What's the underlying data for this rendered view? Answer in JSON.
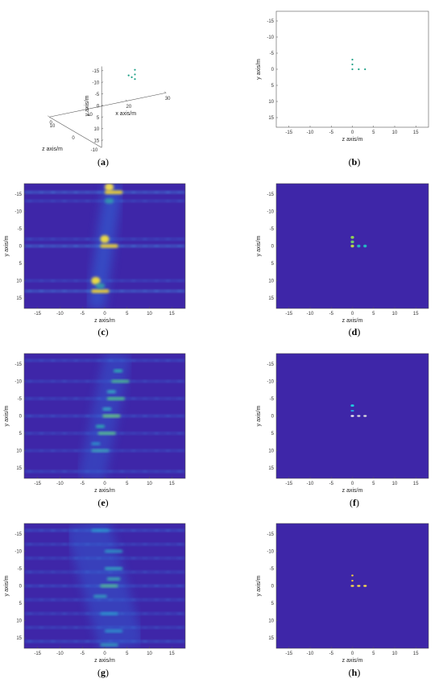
{
  "chart_data": [
    {
      "id": "a",
      "caption": "a",
      "type": "scatter3d",
      "xlabel": "x axis/m",
      "ylabel": "y axis/m",
      "zlabel": "z axis/m",
      "xticks": [
        0,
        10,
        20,
        30
      ],
      "yticks": [
        -15,
        -10,
        -5,
        0,
        5,
        10,
        15
      ],
      "zticks": [
        -10,
        0,
        10
      ],
      "points": [
        {
          "x": 15,
          "y": -4,
          "z": 0
        },
        {
          "x": 15,
          "y": -2,
          "z": 0
        },
        {
          "x": 15,
          "y": 0,
          "z": 0
        },
        {
          "x": 15,
          "y": 0,
          "z": 1.5
        },
        {
          "x": 15,
          "y": 0,
          "z": 3
        }
      ],
      "point_color": "#1fa187"
    },
    {
      "id": "b",
      "caption": "b",
      "type": "scatter",
      "xlabel": "z axis/m",
      "ylabel": "y axis/m",
      "xlim": [
        -18,
        18
      ],
      "ylim": [
        -18,
        18
      ],
      "y_reversed": true,
      "xticks": [
        -15,
        -10,
        -5,
        0,
        5,
        10,
        15
      ],
      "yticks": [
        -15,
        -10,
        -5,
        0,
        5,
        10,
        15
      ],
      "background": "#ffffff",
      "points": [
        {
          "x": 0,
          "y": -3,
          "c": "#1fa187"
        },
        {
          "x": 0,
          "y": -1.5,
          "c": "#1fa187"
        },
        {
          "x": 0,
          "y": 0,
          "c": "#1fa187"
        },
        {
          "x": 1.5,
          "y": 0,
          "c": "#1fa187"
        },
        {
          "x": 3,
          "y": 0,
          "c": "#1fa187"
        }
      ]
    },
    {
      "id": "c",
      "caption": "c",
      "type": "heatmap",
      "xlabel": "z axis/m",
      "ylabel": "y axis/m",
      "xlim": [
        -18,
        18
      ],
      "ylim": [
        -18,
        18
      ],
      "y_reversed": true,
      "xticks": [
        -15,
        -10,
        -5,
        0,
        5,
        10,
        15
      ],
      "yticks": [
        -15,
        -10,
        -5,
        0,
        5,
        10,
        15
      ],
      "background": "#3e26a8",
      "blobs": [
        {
          "x": 1,
          "y": -17,
          "w": 2,
          "h": 2.2,
          "c": "#ffe94a",
          "o": 0.9
        },
        {
          "x": 2,
          "y": -15.5,
          "w": 4,
          "h": 1,
          "c": "#fbd62b",
          "o": 0.95
        },
        {
          "x": 1,
          "y": -13,
          "w": 2,
          "h": 1.5,
          "c": "#33b7a0",
          "o": 0.6
        },
        {
          "x": 0,
          "y": -2,
          "w": 2,
          "h": 2.2,
          "c": "#f4e03c",
          "o": 0.95
        },
        {
          "x": 1,
          "y": 0,
          "w": 4,
          "h": 1,
          "c": "#fbd62b",
          "o": 0.95
        },
        {
          "x": -2,
          "y": 10,
          "w": 2,
          "h": 2.2,
          "c": "#f4e03c",
          "o": 0.95
        },
        {
          "x": -1,
          "y": 13,
          "w": 4,
          "h": 1,
          "c": "#fbd62b",
          "o": 0.95
        },
        {
          "x": -1,
          "y": 11.5,
          "w": 2,
          "h": 1.5,
          "c": "#35b6a2",
          "o": 0.7
        }
      ],
      "bands": [
        {
          "y": -15.5,
          "c": "#3f8ee0",
          "o": 0.55
        },
        {
          "y": -13,
          "c": "#3478de",
          "o": 0.35
        },
        {
          "y": 0,
          "c": "#3f8ee0",
          "o": 0.55
        },
        {
          "y": -2,
          "c": "#3478de",
          "o": 0.35
        },
        {
          "y": 13,
          "c": "#3f8ee0",
          "o": 0.55
        },
        {
          "y": 10,
          "c": "#3478de",
          "o": 0.35
        }
      ],
      "diagonal": {
        "x1": 2,
        "y1": -18,
        "x2": -2,
        "y2": 18,
        "w": 4,
        "c": "#2f6fe0",
        "o": 0.5
      }
    },
    {
      "id": "d",
      "caption": "d",
      "type": "heatmap",
      "xlabel": "z axis/m",
      "ylabel": "y axis/m",
      "xlim": [
        -18,
        18
      ],
      "ylim": [
        -18,
        18
      ],
      "y_reversed": true,
      "xticks": [
        -15,
        -10,
        -5,
        0,
        5,
        10,
        15
      ],
      "yticks": [
        -15,
        -10,
        -5,
        0,
        5,
        10,
        15
      ],
      "background": "#3e26a8",
      "blobs": [
        {
          "x": 0,
          "y": -2.5,
          "w": 0.8,
          "h": 0.8,
          "c": "#8fcf55",
          "o": 1
        },
        {
          "x": 0,
          "y": -1.2,
          "w": 0.8,
          "h": 0.8,
          "c": "#6fca6a",
          "o": 1
        },
        {
          "x": 0,
          "y": 0,
          "w": 0.8,
          "h": 0.8,
          "c": "#b8d64a",
          "o": 1
        },
        {
          "x": 1.5,
          "y": 0,
          "w": 0.8,
          "h": 0.8,
          "c": "#24b6c0",
          "o": 1
        },
        {
          "x": 3,
          "y": 0,
          "w": 0.8,
          "h": 0.8,
          "c": "#24b6c0",
          "o": 1
        }
      ],
      "bands": [],
      "diagonal": null
    },
    {
      "id": "e",
      "caption": "e",
      "type": "heatmap",
      "xlabel": "z axis/m",
      "ylabel": "y axis/m",
      "xlim": [
        -18,
        18
      ],
      "ylim": [
        -18,
        18
      ],
      "y_reversed": true,
      "xticks": [
        -15,
        -10,
        -5,
        0,
        5,
        10,
        15
      ],
      "yticks": [
        -15,
        -10,
        -5,
        0,
        5,
        10,
        15
      ],
      "background": "#3e26a8",
      "blobs": [
        {
          "x": 3,
          "y": -13,
          "w": 2,
          "h": 0.8,
          "c": "#2ac0b0",
          "o": 0.9
        },
        {
          "x": 3.5,
          "y": -10,
          "w": 4,
          "h": 0.8,
          "c": "#4fc88a",
          "o": 0.9
        },
        {
          "x": 1.5,
          "y": -7,
          "w": 2,
          "h": 0.8,
          "c": "#36b9c4",
          "o": 0.9
        },
        {
          "x": 2.5,
          "y": -5,
          "w": 4,
          "h": 0.8,
          "c": "#4fc88a",
          "o": 0.95
        },
        {
          "x": 0.5,
          "y": -2,
          "w": 2,
          "h": 0.8,
          "c": "#36b9c4",
          "o": 0.9
        },
        {
          "x": 1.5,
          "y": 0,
          "w": 4,
          "h": 0.8,
          "c": "#6fd27a",
          "o": 0.95
        },
        {
          "x": -1,
          "y": 3,
          "w": 2,
          "h": 0.8,
          "c": "#2ac0b0",
          "o": 0.9
        },
        {
          "x": 0.5,
          "y": 5,
          "w": 4,
          "h": 0.8,
          "c": "#5bc98c",
          "o": 0.95
        },
        {
          "x": -2,
          "y": 8,
          "w": 2,
          "h": 0.8,
          "c": "#2aa8d0",
          "o": 0.8
        },
        {
          "x": -1,
          "y": 10,
          "w": 4,
          "h": 0.8,
          "c": "#3fb6b8",
          "o": 0.85
        }
      ],
      "bands": [
        {
          "y": -16,
          "c": "#3478de",
          "o": 0.4
        },
        {
          "y": -10,
          "c": "#3478de",
          "o": 0.35
        },
        {
          "y": -5,
          "c": "#3478de",
          "o": 0.35
        },
        {
          "y": 0,
          "c": "#3478de",
          "o": 0.4
        },
        {
          "y": 5,
          "c": "#3478de",
          "o": 0.35
        },
        {
          "y": 10,
          "c": "#3478de",
          "o": 0.35
        },
        {
          "y": 16,
          "c": "#3478de",
          "o": 0.4
        }
      ],
      "diagonal": {
        "x1": 3,
        "y1": -18,
        "x2": -3,
        "y2": 18,
        "w": 6,
        "c": "#2f6fe0",
        "o": 0.35
      }
    },
    {
      "id": "f",
      "caption": "f",
      "type": "heatmap",
      "xlabel": "z axis/m",
      "ylabel": "y axis/m",
      "xlim": [
        -18,
        18
      ],
      "ylim": [
        -18,
        18
      ],
      "y_reversed": true,
      "xticks": [
        -15,
        -10,
        -5,
        0,
        5,
        10,
        15
      ],
      "yticks": [
        -15,
        -10,
        -5,
        0,
        5,
        10,
        15
      ],
      "background": "#3e26a8",
      "blobs": [
        {
          "x": 0,
          "y": -3,
          "w": 0.8,
          "h": 0.6,
          "c": "#1fd0e0",
          "o": 1
        },
        {
          "x": 0,
          "y": -1.5,
          "w": 0.8,
          "h": 0.5,
          "c": "#2b9be0",
          "o": 1
        },
        {
          "x": 0,
          "y": 0,
          "w": 0.8,
          "h": 0.5,
          "c": "#f2f2f2",
          "o": 1
        },
        {
          "x": 1.5,
          "y": 0,
          "w": 0.8,
          "h": 0.5,
          "c": "#dcdcdc",
          "o": 1
        },
        {
          "x": 3,
          "y": 0,
          "w": 0.8,
          "h": 0.5,
          "c": "#dcdcdc",
          "o": 1
        }
      ],
      "bands": [],
      "diagonal": null
    },
    {
      "id": "g",
      "caption": "g",
      "type": "heatmap",
      "xlabel": "z axis/m",
      "ylabel": "y axis/m",
      "xlim": [
        -18,
        18
      ],
      "ylim": [
        -18,
        18
      ],
      "y_reversed": true,
      "xticks": [
        -15,
        -10,
        -5,
        0,
        5,
        10,
        15
      ],
      "yticks": [
        -15,
        -10,
        -5,
        0,
        5,
        10,
        15
      ],
      "background": "#3e26a8",
      "blobs": [
        {
          "x": -1,
          "y": -16,
          "w": 4,
          "h": 0.8,
          "c": "#2aa8d0",
          "o": 0.8
        },
        {
          "x": 2,
          "y": -10,
          "w": 4,
          "h": 0.8,
          "c": "#2ab0c8",
          "o": 0.8
        },
        {
          "x": 2,
          "y": -5,
          "w": 4,
          "h": 0.8,
          "c": "#30b8c0",
          "o": 0.85
        },
        {
          "x": 2,
          "y": -2,
          "w": 3,
          "h": 0.8,
          "c": "#3ec0b0",
          "o": 0.85
        },
        {
          "x": 1,
          "y": 0,
          "w": 4,
          "h": 0.8,
          "c": "#58c890",
          "o": 0.9
        },
        {
          "x": -1,
          "y": 3,
          "w": 3,
          "h": 0.8,
          "c": "#30b8c0",
          "o": 0.8
        },
        {
          "x": 1,
          "y": 8,
          "w": 4,
          "h": 0.8,
          "c": "#2aa8d0",
          "o": 0.8
        },
        {
          "x": 2,
          "y": 13,
          "w": 4,
          "h": 0.8,
          "c": "#2aa8d0",
          "o": 0.8
        },
        {
          "x": 1,
          "y": 17,
          "w": 4,
          "h": 0.8,
          "c": "#30b8c0",
          "o": 0.8
        }
      ],
      "bands": [
        {
          "y": -16,
          "c": "#3478de",
          "o": 0.45
        },
        {
          "y": -12,
          "c": "#3478de",
          "o": 0.35
        },
        {
          "y": -8,
          "c": "#3478de",
          "o": 0.35
        },
        {
          "y": -4,
          "c": "#3478de",
          "o": 0.35
        },
        {
          "y": 0,
          "c": "#3478de",
          "o": 0.4
        },
        {
          "y": 4,
          "c": "#3478de",
          "o": 0.35
        },
        {
          "y": 8,
          "c": "#3478de",
          "o": 0.35
        },
        {
          "y": 12,
          "c": "#3478de",
          "o": 0.35
        },
        {
          "y": 16,
          "c": "#3478de",
          "o": 0.45
        }
      ],
      "diagonal": {
        "x1": -4,
        "y1": -18,
        "x2": 4,
        "y2": 18,
        "w": 10,
        "c": "#2f6fe0",
        "o": 0.35
      }
    },
    {
      "id": "h",
      "caption": "h",
      "type": "heatmap",
      "xlabel": "z axis/m",
      "ylabel": "y axis/m",
      "xlim": [
        -18,
        18
      ],
      "ylim": [
        -18,
        18
      ],
      "y_reversed": true,
      "xticks": [
        -15,
        -10,
        -5,
        0,
        5,
        10,
        15
      ],
      "yticks": [
        -15,
        -10,
        -5,
        0,
        5,
        10,
        15
      ],
      "background": "#3e26a8",
      "blobs": [
        {
          "x": 0,
          "y": -3,
          "w": 0.5,
          "h": 0.5,
          "c": "#f5d43a",
          "o": 1
        },
        {
          "x": 0,
          "y": -1.5,
          "w": 0.5,
          "h": 0.5,
          "c": "#f0c83a",
          "o": 1
        },
        {
          "x": 0,
          "y": 0,
          "w": 0.8,
          "h": 0.5,
          "c": "#fbe04a",
          "o": 1
        },
        {
          "x": 1.5,
          "y": 0,
          "w": 0.8,
          "h": 0.5,
          "c": "#fbe04a",
          "o": 1
        },
        {
          "x": 3,
          "y": 0,
          "w": 0.8,
          "h": 0.5,
          "c": "#fbe04a",
          "o": 1
        }
      ],
      "bands": [],
      "diagonal": null
    }
  ]
}
